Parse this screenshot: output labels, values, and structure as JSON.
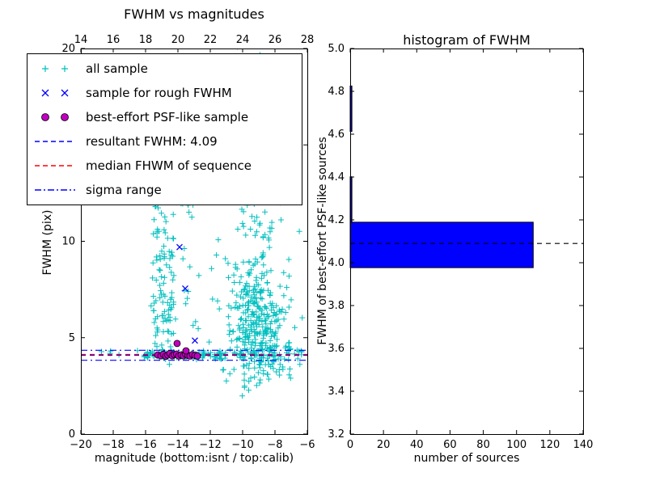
{
  "figure": {
    "background": "#ffffff",
    "frame_color": "#000000"
  },
  "chart_data": [
    {
      "type": "scatter",
      "title": "FWHM vs magnitudes",
      "xlabel": "magnitude (bottom:isnt / top:calib)",
      "ylabel": "FWHM (pix)",
      "xlim": [
        -20,
        -6
      ],
      "ylim": [
        0,
        20
      ],
      "xticks": {
        "values": [
          -20,
          -18,
          -16,
          -14,
          -12,
          -10,
          -8,
          -6
        ],
        "labels": [
          "−20",
          "−18",
          "−16",
          "−14",
          "−12",
          "−10",
          "−8",
          "−6"
        ]
      },
      "top_xticks": {
        "values": [
          14,
          16,
          18,
          20,
          22,
          24,
          26,
          28
        ],
        "labels": [
          "14",
          "16",
          "18",
          "20",
          "22",
          "24",
          "26",
          "28"
        ]
      },
      "yticks": {
        "values": [
          0,
          5,
          10,
          15,
          20
        ],
        "labels": [
          "0",
          "5",
          "10",
          "15",
          "20"
        ]
      },
      "legend": {
        "items": [
          {
            "label": "all sample",
            "marker": "plus",
            "color": "#00bfbf"
          },
          {
            "label": "sample for rough FWHM",
            "marker": "x",
            "color": "#0000ff"
          },
          {
            "label": "best-effort PSF-like sample",
            "marker": "circle",
            "color": "#bf00bf"
          },
          {
            "label": "resultant FWHM: 4.09",
            "marker": "dashed-line",
            "color": "#0000ff"
          },
          {
            "label": "median FHWM of sequence",
            "marker": "dashed-line",
            "color": "#ff0000"
          },
          {
            "label": "sigma range",
            "marker": "dashdot-line",
            "color": "#0000ff"
          }
        ]
      },
      "series": {
        "all_sample": {
          "marker": "plus",
          "color": "#00bfbf",
          "clusters": [
            {
              "n": 120,
              "x": [
                -15.6,
                -14.25
              ],
              "y": {
                "c": 7.5,
                "s": 4.2
              },
              "clamp_y": [
                4.0,
                20.4
              ]
            },
            {
              "n": 30,
              "x": [
                -13.85,
                -13.05
              ],
              "y": {
                "c": 13.0,
                "s": 4.0
              },
              "clamp_y": [
                4.6,
                20.4
              ]
            },
            {
              "n": 280,
              "x": {
                "c": -9.0,
                "s": 0.9
              },
              "y": {
                "c": 5.2,
                "s": 1.4
              },
              "clamp_y": [
                2.4,
                12.0
              ]
            },
            {
              "n": 90,
              "x": {
                "c": -9.3,
                "s": 0.8
              },
              "y": {
                "c": 8.8,
                "s": 2.0
              },
              "clamp_y": [
                3.0,
                12.8
              ]
            },
            {
              "n": 90,
              "x": [
                -16.1,
                -11.2
              ],
              "y": {
                "c": 4.12,
                "s": 0.1
              }
            },
            {
              "n": 40,
              "x": [
                -11.2,
                -6.3
              ],
              "y": {
                "c": 4.15,
                "s": 0.13
              }
            },
            {
              "n": 50,
              "x": [
                -16.5,
                -6.2
              ],
              "y": [
                2.2,
                13.5
              ]
            },
            {
              "n": 5,
              "x": [
                -19.2,
                -16.4
              ],
              "y": {
                "c": 4.2,
                "s": 0.15
              }
            },
            {
              "n": 16,
              "x": [
                -15.0,
                -8.5
              ],
              "y": [
                13.5,
                20.3
              ]
            },
            {
              "n": 3,
              "x": [
                -10.2,
                -9.2
              ],
              "y": [
                1.9,
                2.5
              ]
            }
          ]
        },
        "rough_fwhm": {
          "marker": "x",
          "color": "#0000ff",
          "points": [
            [
              -13.9,
              9.7
            ],
            [
              -13.55,
              7.55
            ],
            [
              -12.95,
              4.85
            ],
            [
              -14.7,
              4.18
            ],
            [
              -13.3,
              4.12
            ]
          ]
        },
        "psf_like": {
          "marker": "circle",
          "color": "#bf00bf",
          "edge": "#000000",
          "points": [
            [
              -15.25,
              4.1
            ],
            [
              -15.05,
              4.06
            ],
            [
              -14.9,
              4.14
            ],
            [
              -14.75,
              4.04
            ],
            [
              -14.62,
              4.1
            ],
            [
              -14.5,
              4.18
            ],
            [
              -14.35,
              4.06
            ],
            [
              -14.22,
              4.12
            ],
            [
              -14.08,
              4.15
            ],
            [
              -13.95,
              4.05
            ],
            [
              -13.8,
              4.1
            ],
            [
              -13.66,
              4.06
            ],
            [
              -13.52,
              4.14
            ],
            [
              -13.38,
              4.08
            ],
            [
              -13.25,
              4.05
            ],
            [
              -13.1,
              4.12
            ],
            [
              -12.95,
              4.08
            ],
            [
              -12.8,
              4.05
            ],
            [
              -13.5,
              4.32
            ],
            [
              -14.05,
              4.7
            ]
          ]
        }
      },
      "lines": [
        {
          "name": "resultant-fwhm",
          "value": 4.09,
          "style": "dashed",
          "color": "#0000ff"
        },
        {
          "name": "median-fwhm",
          "value": 4.13,
          "style": "dashed",
          "color": "#ff0000"
        },
        {
          "name": "sigma-low",
          "value": 3.83,
          "style": "dashdot",
          "color": "#0000ff"
        },
        {
          "name": "sigma-high",
          "value": 4.35,
          "style": "dashdot",
          "color": "#0000ff"
        }
      ]
    },
    {
      "type": "bar",
      "orientation": "horizontal",
      "title": "histogram of FWHM",
      "xlabel": "number of sources",
      "ylabel": "FWHM of best-effort PSF-like sources",
      "xlim": [
        0,
        140
      ],
      "ylim": [
        3.2,
        5.0
      ],
      "xticks": {
        "values": [
          0,
          20,
          40,
          60,
          80,
          100,
          120,
          140
        ],
        "labels": [
          "0",
          "20",
          "40",
          "60",
          "80",
          "100",
          "120",
          "140"
        ]
      },
      "yticks": {
        "values": [
          3.2,
          3.4,
          3.6,
          3.8,
          4.0,
          4.2,
          4.4,
          4.6,
          4.8,
          5.0
        ],
        "labels": [
          "3.2",
          "3.4",
          "3.6",
          "3.8",
          "4.0",
          "4.2",
          "4.4",
          "4.6",
          "4.8",
          "5.0"
        ]
      },
      "bin_edges": [
        3.977,
        4.189,
        4.401,
        4.613,
        4.825
      ],
      "counts": [
        110,
        1,
        0,
        1
      ],
      "bar_color": "#0000ff",
      "bar_edge_color": "#000000",
      "median_line": {
        "value": 4.09,
        "style": "dashed",
        "color": "#000000"
      }
    }
  ]
}
